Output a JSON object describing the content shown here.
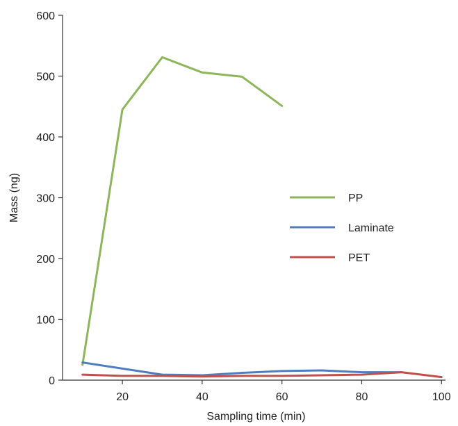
{
  "chart_data": {
    "type": "line",
    "title": "",
    "xlabel": "Sampling time (min)",
    "ylabel": "Mass (ng)",
    "xlim": [
      5,
      101
    ],
    "ylim": [
      0,
      600
    ],
    "xticks": [
      20,
      40,
      60,
      80,
      100
    ],
    "yticks": [
      0,
      100,
      200,
      300,
      400,
      500,
      600
    ],
    "grid": false,
    "legend_position": "center-right",
    "series": [
      {
        "name": "PP",
        "color": "#8DB55A",
        "x": [
          10,
          20,
          30,
          40,
          50,
          60
        ],
        "y": [
          25,
          445,
          531,
          506,
          499,
          451
        ]
      },
      {
        "name": "Laminate",
        "color": "#4F7EBF",
        "x": [
          10,
          20,
          30,
          40,
          50,
          60,
          70,
          80,
          90
        ],
        "y": [
          29,
          19,
          9,
          8,
          12,
          15,
          16,
          13,
          13
        ]
      },
      {
        "name": "PET",
        "color": "#C0504D",
        "x": [
          10,
          20,
          30,
          40,
          50,
          60,
          70,
          80,
          90,
          100
        ],
        "y": [
          9,
          7,
          7,
          6,
          7,
          7,
          8,
          9,
          13,
          5
        ]
      }
    ]
  }
}
